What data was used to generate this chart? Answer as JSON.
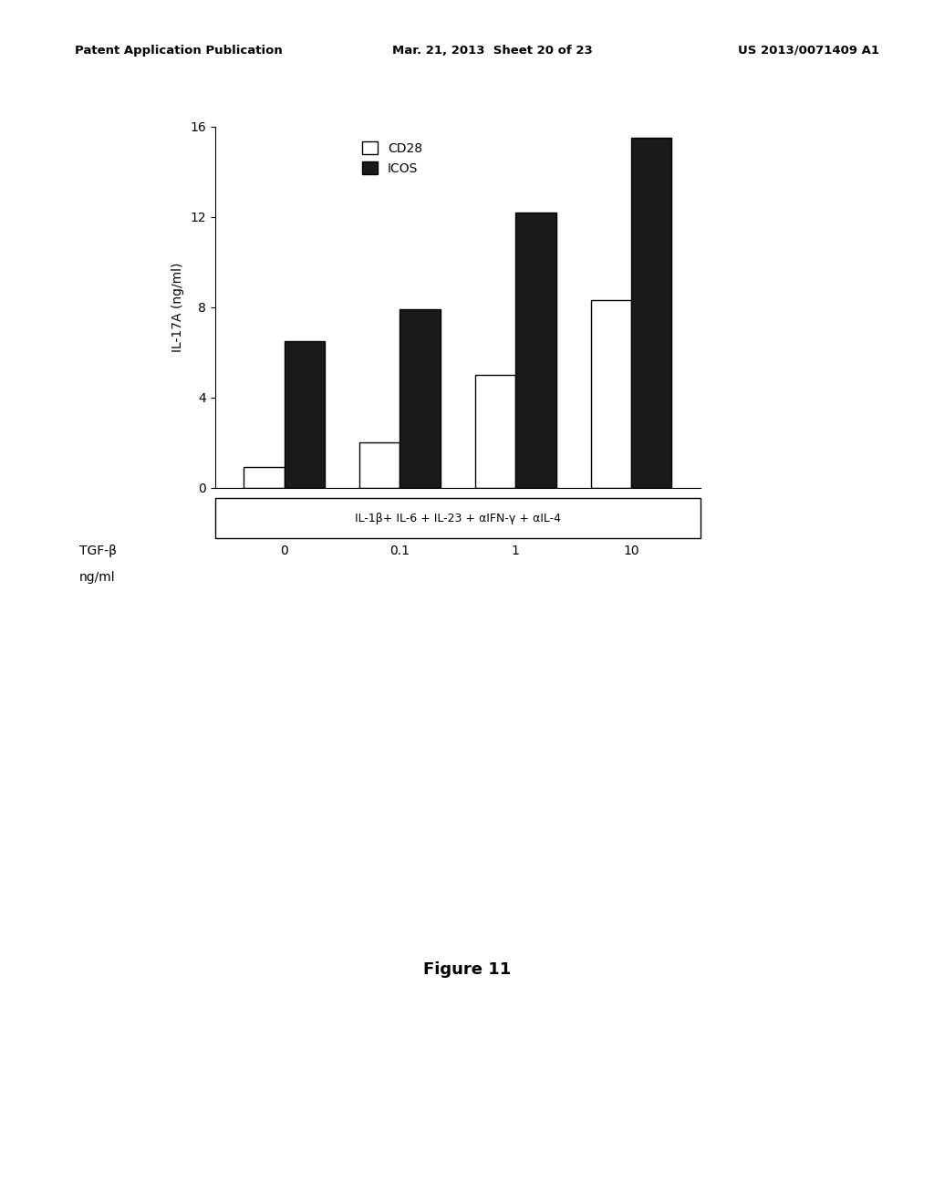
{
  "categories": [
    "0",
    "0.1",
    "1",
    "10"
  ],
  "cd28_values": [
    0.9,
    2.0,
    5.0,
    8.3
  ],
  "icos_values": [
    6.5,
    7.9,
    12.2,
    15.5
  ],
  "cd28_color": "#ffffff",
  "icos_color": "#1a1a1a",
  "bar_edge_color": "#000000",
  "ylabel": "IL-17A (ng/ml)",
  "xlabel_main": "IL-1β+ IL-6 + IL-23 + αIFN-γ + αIL-4",
  "xlabel_tgf_line1": "TGF-β",
  "xlabel_tgf_line2": "ng/ml",
  "yticks": [
    0,
    4,
    8,
    12,
    16
  ],
  "ylim": [
    0,
    16
  ],
  "legend_labels": [
    "CD28",
    "ICOS"
  ],
  "figure_caption": "Figure 11",
  "bar_width": 0.35,
  "group_positions": [
    0,
    1,
    2,
    3
  ],
  "background_color": "#ffffff",
  "header_left": "Patent Application Publication",
  "header_center": "Mar. 21, 2013  Sheet 20 of 23",
  "header_right": "US 2013/0071409 A1"
}
